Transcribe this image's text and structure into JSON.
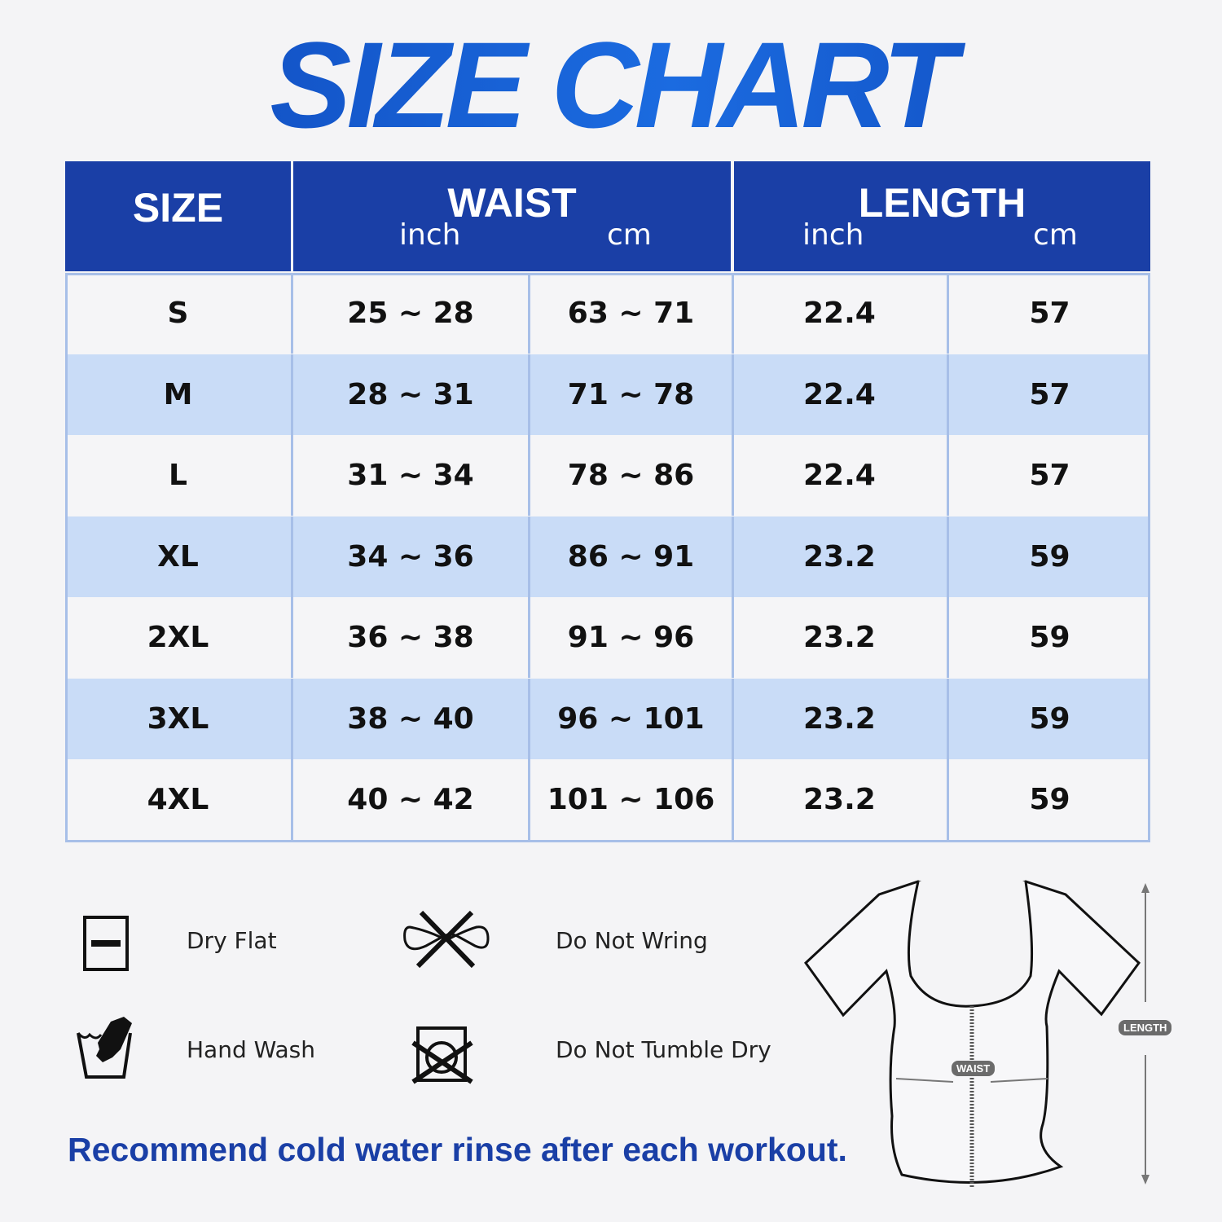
{
  "title": "SIZE CHART",
  "colors": {
    "header": "#1a3fa6",
    "row_alt": "#c9dcf7",
    "row": "#f5f5f7",
    "border": "#a7bfe8",
    "title": "#1456c8"
  },
  "table": {
    "headers": {
      "size": "SIZE",
      "waist": "WAIST",
      "length": "LENGTH",
      "inch": "inch",
      "cm": "cm"
    },
    "rows": [
      {
        "size": "S",
        "waist_in": "25 ~ 28",
        "waist_cm": "63 ~ 71",
        "length_in": "22.4",
        "length_cm": "57"
      },
      {
        "size": "M",
        "waist_in": "28 ~ 31",
        "waist_cm": "71 ~ 78",
        "length_in": "22.4",
        "length_cm": "57"
      },
      {
        "size": "L",
        "waist_in": "31 ~ 34",
        "waist_cm": "78 ~ 86",
        "length_in": "22.4",
        "length_cm": "57"
      },
      {
        "size": "XL",
        "waist_in": "34 ~ 36",
        "waist_cm": "86 ~ 91",
        "length_in": "23.2",
        "length_cm": "59"
      },
      {
        "size": "2XL",
        "waist_in": "36 ~ 38",
        "waist_cm": "91 ~ 96",
        "length_in": "23.2",
        "length_cm": "59"
      },
      {
        "size": "3XL",
        "waist_in": "38 ~ 40",
        "waist_cm": "96 ~ 101",
        "length_in": "23.2",
        "length_cm": "59"
      },
      {
        "size": "4XL",
        "waist_in": "40 ~ 42",
        "waist_cm": "101 ~ 106",
        "length_in": "23.2",
        "length_cm": "59"
      }
    ]
  },
  "care": [
    {
      "label": "Dry Flat",
      "icon": "dry-flat-icon"
    },
    {
      "label": "Do Not Wring",
      "icon": "do-not-wring-icon"
    },
    {
      "label": "Hand Wash",
      "icon": "hand-wash-icon"
    },
    {
      "label": "Do Not Tumble Dry",
      "icon": "do-not-tumble-dry-icon"
    }
  ],
  "note": "Recommend cold water rinse after each workout.",
  "diagram": {
    "waist_label": "WAIST",
    "length_label": "LENGTH"
  }
}
